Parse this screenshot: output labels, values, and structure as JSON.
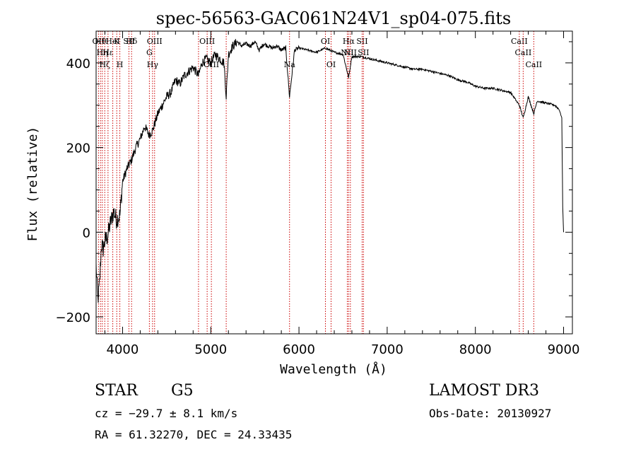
{
  "chart_data": {
    "type": "line",
    "title": "spec-56563-GAC061N24V1_sp04-075.fits",
    "xlabel": "Wavelength (Å)",
    "ylabel": "Flux (relative)",
    "xlim": [
      3700,
      9100
    ],
    "ylim": [
      -240,
      475
    ],
    "xticks": [
      4000,
      5000,
      6000,
      7000,
      8000,
      9000
    ],
    "yticks": [
      -200,
      0,
      200,
      400
    ],
    "ytick_labels": [
      "−200",
      "0",
      "200",
      "400"
    ],
    "series": [
      {
        "name": "flux",
        "x": [
          3700,
          3720,
          3740,
          3760,
          3780,
          3800,
          3830,
          3860,
          3900,
          3930,
          3970,
          4000,
          4050,
          4100,
          4150,
          4200,
          4250,
          4300,
          4340,
          4400,
          4450,
          4500,
          4550,
          4600,
          4650,
          4700,
          4750,
          4800,
          4861,
          4900,
          4950,
          5000,
          5050,
          5100,
          5150,
          5175,
          5200,
          5250,
          5300,
          5350,
          5400,
          5450,
          5500,
          5550,
          5600,
          5650,
          5700,
          5750,
          5800,
          5850,
          5893,
          5950,
          6000,
          6100,
          6200,
          6300,
          6400,
          6500,
          6563,
          6600,
          6700,
          6800,
          6900,
          7000,
          7100,
          7200,
          7300,
          7400,
          7500,
          7600,
          7700,
          7800,
          7900,
          8000,
          8100,
          8200,
          8300,
          8400,
          8498,
          8542,
          8600,
          8662,
          8700,
          8800,
          8900,
          8950,
          8980,
          8990,
          9000
        ],
        "y": [
          -80,
          -160,
          -120,
          -30,
          -40,
          -20,
          -10,
          20,
          50,
          30,
          40,
          120,
          150,
          170,
          200,
          220,
          250,
          230,
          240,
          280,
          300,
          320,
          330,
          360,
          350,
          370,
          380,
          390,
          370,
          400,
          410,
          400,
          420,
          410,
          400,
          320,
          420,
          440,
          450,
          440,
          445,
          440,
          450,
          430,
          445,
          440,
          435,
          440,
          430,
          435,
          320,
          430,
          435,
          430,
          425,
          435,
          425,
          420,
          365,
          415,
          415,
          410,
          405,
          400,
          395,
          390,
          385,
          385,
          380,
          375,
          370,
          360,
          355,
          345,
          340,
          340,
          335,
          330,
          300,
          270,
          320,
          280,
          310,
          305,
          300,
          290,
          270,
          60,
          0
        ]
      }
    ],
    "lines": [
      {
        "wavelength": 3727,
        "upper": "OII",
        "lower": ""
      },
      {
        "wavelength": 3750,
        "upper": "Hθ",
        "lower": ""
      },
      {
        "wavelength": 3770,
        "upper": "",
        "lower": "Hη"
      },
      {
        "wavelength": 3798,
        "upper": "",
        "lower": "Hζ"
      },
      {
        "wavelength": 3835,
        "upper": "",
        "lower": "Hε"
      },
      {
        "wavelength": 3889,
        "upper": "HeI",
        "lower": ""
      },
      {
        "wavelength": 3934,
        "upper": "K",
        "lower": ""
      },
      {
        "wavelength": 3969,
        "upper": "",
        "lower": "H"
      },
      {
        "wavelength": 4072,
        "upper": "SII",
        "lower": ""
      },
      {
        "wavelength": 4102,
        "upper": "Hδ",
        "lower": ""
      },
      {
        "wavelength": 4304,
        "upper": "",
        "lower": "G"
      },
      {
        "wavelength": 4340,
        "upper": "",
        "lower": "Hγ"
      },
      {
        "wavelength": 4363,
        "upper": "OIII",
        "lower": ""
      },
      {
        "wavelength": 4861,
        "upper": "",
        "lower": ""
      },
      {
        "wavelength": 4959,
        "upper": "OIII",
        "lower": ""
      },
      {
        "wavelength": 5007,
        "upper": "",
        "lower": "OIII"
      },
      {
        "wavelength": 5175,
        "upper": "",
        "lower": ""
      },
      {
        "wavelength": 5893,
        "upper": "",
        "lower": "Na"
      },
      {
        "wavelength": 6300,
        "upper": "OI",
        "lower": ""
      },
      {
        "wavelength": 6364,
        "upper": "",
        "lower": "OI"
      },
      {
        "wavelength": 6548,
        "upper": "",
        "lower": "NII"
      },
      {
        "wavelength": 6563,
        "upper": "Hα",
        "lower": ""
      },
      {
        "wavelength": 6583,
        "upper": "",
        "lower": "NII"
      },
      {
        "wavelength": 6716,
        "upper": "SII",
        "lower": ""
      },
      {
        "wavelength": 6731,
        "upper": "",
        "lower": "SII"
      },
      {
        "wavelength": 8498,
        "upper": "CaII",
        "lower": ""
      },
      {
        "wavelength": 8542,
        "upper": "",
        "lower": "CaII"
      },
      {
        "wavelength": 8662,
        "upper": "",
        "lower": "CaII"
      }
    ]
  },
  "info": {
    "object_class": "STAR",
    "subclass": "G5",
    "survey": "LAMOST DR3",
    "velocity": "cz = −29.7 ± 8.1 km/s",
    "obs_date": "Obs-Date: 20130927",
    "coords": "RA =  61.32270, DEC =  24.33435"
  },
  "colors": {
    "line_marker": "#cc0000",
    "spectrum": "#000000"
  }
}
